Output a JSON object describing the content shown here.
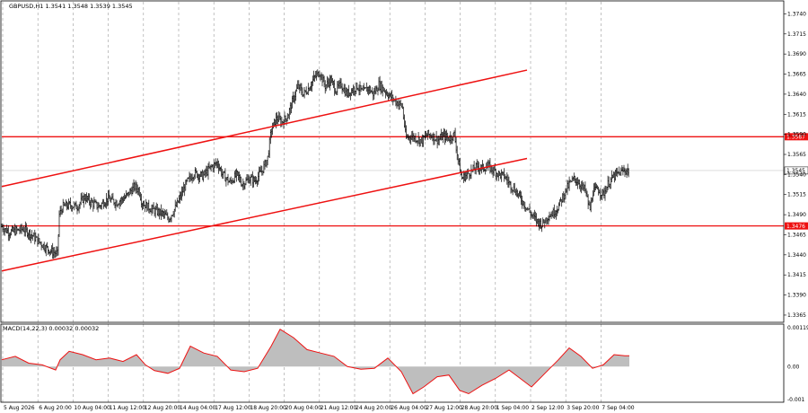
{
  "chart_title": "GBPUSD,H1  1.3541 1.3548 1.3539 1.3545",
  "macd_title": "MACD(14,22,3) 0.00032 0.00032",
  "colors": {
    "background": "#ffffff",
    "bars": "#000000",
    "grid": "#9a9a9a",
    "trend_line": "#ee1111",
    "macd_histogram": "#bebebe",
    "macd_signal": "#ee1111",
    "bid_tag_bg": "#ffffff",
    "level_tag_bg": "#ee1111"
  },
  "chart_data": [
    {
      "type": "candlestick",
      "symbol": "GBPUSD",
      "timeframe": "H1",
      "ohlc_last": {
        "open": 1.3541,
        "high": 1.3548,
        "low": 1.3539,
        "close": 1.3545
      },
      "ylim": [
        1.3356,
        1.3755
      ],
      "y_ticks": [
        "1.3740",
        "1.3715",
        "1.3690",
        "1.3665",
        "1.3640",
        "1.3615",
        "1.3590",
        "1.3565",
        "1.3540",
        "1.3515",
        "1.3490",
        "1.3465",
        "1.3440",
        "1.3415",
        "1.3390",
        "1.3365"
      ],
      "x_ticks": [
        "5 Aug 2026",
        "6 Aug 20:00",
        "10 Aug 04:00",
        "11 Aug 12:00",
        "12 Aug 20:00",
        "14 Aug 04:00",
        "17 Aug 12:00",
        "18 Aug 20:00",
        "20 Aug 04:00",
        "21 Aug 12:00",
        "24 Aug 20:00",
        "26 Aug 04:00",
        "27 Aug 12:00",
        "28 Aug 20:00",
        "1 Sep 04:00",
        "2 Sep 12:00",
        "3 Sep 20:00",
        "7 Sep 04:00"
      ],
      "close_path": [
        [
          0,
          1.3475
        ],
        [
          8,
          1.3468
        ],
        [
          16,
          1.347
        ],
        [
          24,
          1.3472
        ],
        [
          32,
          1.3466
        ],
        [
          40,
          1.3458
        ],
        [
          48,
          1.345
        ],
        [
          56,
          1.3444
        ],
        [
          62,
          1.3441
        ],
        [
          64,
          1.349
        ],
        [
          68,
          1.35
        ],
        [
          76,
          1.3502
        ],
        [
          84,
          1.35
        ],
        [
          92,
          1.3512
        ],
        [
          100,
          1.3505
        ],
        [
          108,
          1.35
        ],
        [
          118,
          1.351
        ],
        [
          128,
          1.3505
        ],
        [
          138,
          1.3512
        ],
        [
          148,
          1.3525
        ],
        [
          153,
          1.352
        ],
        [
          156,
          1.3505
        ],
        [
          162,
          1.35
        ],
        [
          170,
          1.3495
        ],
        [
          178,
          1.3492
        ],
        [
          186,
          1.3485
        ],
        [
          194,
          1.35
        ],
        [
          200,
          1.3515
        ],
        [
          206,
          1.353
        ],
        [
          214,
          1.3542
        ],
        [
          224,
          1.3538
        ],
        [
          232,
          1.3548
        ],
        [
          240,
          1.3555
        ],
        [
          246,
          1.354
        ],
        [
          254,
          1.353
        ],
        [
          262,
          1.354
        ],
        [
          268,
          1.3528
        ],
        [
          276,
          1.3535
        ],
        [
          282,
          1.3532
        ],
        [
          290,
          1.3545
        ],
        [
          296,
          1.356
        ],
        [
          300,
          1.3595
        ],
        [
          306,
          1.361
        ],
        [
          312,
          1.3605
        ],
        [
          318,
          1.3612
        ],
        [
          324,
          1.3632
        ],
        [
          330,
          1.365
        ],
        [
          336,
          1.364
        ],
        [
          342,
          1.3648
        ],
        [
          348,
          1.366
        ],
        [
          354,
          1.3668
        ],
        [
          360,
          1.365
        ],
        [
          366,
          1.3658
        ],
        [
          372,
          1.3645
        ],
        [
          378,
          1.3652
        ],
        [
          384,
          1.364
        ],
        [
          390,
          1.3645
        ],
        [
          396,
          1.365
        ],
        [
          402,
          1.3642
        ],
        [
          408,
          1.3648
        ],
        [
          414,
          1.364
        ],
        [
          420,
          1.3652
        ],
        [
          426,
          1.3645
        ],
        [
          432,
          1.3638
        ],
        [
          440,
          1.363
        ],
        [
          446,
          1.3625
        ],
        [
          450,
          1.3585
        ],
        [
          456,
          1.3588
        ],
        [
          462,
          1.3585
        ],
        [
          468,
          1.3582
        ],
        [
          474,
          1.359
        ],
        [
          480,
          1.3588
        ],
        [
          486,
          1.3583
        ],
        [
          492,
          1.3588
        ],
        [
          498,
          1.3585
        ],
        [
          504,
          1.359
        ],
        [
          508,
          1.356
        ],
        [
          512,
          1.3535
        ],
        [
          518,
          1.354
        ],
        [
          524,
          1.3545
        ],
        [
          530,
          1.355
        ],
        [
          536,
          1.3548
        ],
        [
          542,
          1.355
        ],
        [
          548,
          1.3545
        ],
        [
          554,
          1.354
        ],
        [
          560,
          1.3538
        ],
        [
          566,
          1.3528
        ],
        [
          572,
          1.352
        ],
        [
          578,
          1.351
        ],
        [
          584,
          1.35
        ],
        [
          590,
          1.349
        ],
        [
          596,
          1.3482
        ],
        [
          602,
          1.3478
        ],
        [
          608,
          1.3488
        ],
        [
          614,
          1.3492
        ],
        [
          620,
          1.35
        ],
        [
          626,
          1.3515
        ],
        [
          632,
          1.3528
        ],
        [
          638,
          1.3535
        ],
        [
          644,
          1.3528
        ],
        [
          650,
          1.352
        ],
        [
          655,
          1.3495
        ],
        [
          658,
          1.3518
        ],
        [
          664,
          1.3522
        ],
        [
          670,
          1.3515
        ],
        [
          676,
          1.353
        ],
        [
          682,
          1.3538
        ],
        [
          688,
          1.3542
        ],
        [
          694,
          1.3545
        ],
        [
          699,
          1.3545
        ]
      ],
      "horizontal_levels": [
        {
          "value": 1.3587,
          "label": "1.3587"
        },
        {
          "value": 1.3476,
          "label": "1.3476"
        }
      ],
      "current_price": {
        "value": 1.3545,
        "label": "1.3545"
      },
      "channel_lines": [
        {
          "from": [
            0,
            1.3525
          ],
          "to": [
            585,
            1.367
          ]
        },
        {
          "from": [
            0,
            1.342
          ],
          "to": [
            585,
            1.356
          ]
        }
      ],
      "grid": true
    },
    {
      "type": "area",
      "name": "MACD(14,22,3)",
      "ylim": [
        -0.00105,
        0.00125
      ],
      "y_ticks": [
        "0.00119",
        "0.00",
        "-0.001"
      ],
      "main_line": [
        [
          0,
          0.0002
        ],
        [
          15,
          0.0003
        ],
        [
          30,
          0.0001
        ],
        [
          45,
          5e-05
        ],
        [
          60,
          -0.0001
        ],
        [
          65,
          0.0002
        ],
        [
          75,
          0.00045
        ],
        [
          90,
          0.00035
        ],
        [
          105,
          0.0002
        ],
        [
          120,
          0.00025
        ],
        [
          135,
          0.00015
        ],
        [
          150,
          0.00035
        ],
        [
          160,
          5e-05
        ],
        [
          170,
          -0.00012
        ],
        [
          185,
          -0.0002
        ],
        [
          198,
          -5e-05
        ],
        [
          210,
          0.0006
        ],
        [
          225,
          0.0004
        ],
        [
          240,
          0.0003
        ],
        [
          255,
          -0.0001
        ],
        [
          270,
          -0.00015
        ],
        [
          285,
          -5e-05
        ],
        [
          300,
          0.0006
        ],
        [
          310,
          0.0011
        ],
        [
          325,
          0.00085
        ],
        [
          340,
          0.0005
        ],
        [
          355,
          0.0004
        ],
        [
          370,
          0.0003
        ],
        [
          385,
          0.0
        ],
        [
          400,
          -8e-05
        ],
        [
          415,
          -5e-05
        ],
        [
          430,
          0.00025
        ],
        [
          445,
          -0.00015
        ],
        [
          458,
          -0.0008
        ],
        [
          470,
          -0.0006
        ],
        [
          485,
          -0.0003
        ],
        [
          498,
          -0.00025
        ],
        [
          510,
          -0.0007
        ],
        [
          520,
          -0.0008
        ],
        [
          535,
          -0.00055
        ],
        [
          550,
          -0.00035
        ],
        [
          565,
          -0.0001
        ],
        [
          575,
          -0.0003
        ],
        [
          590,
          -0.0006
        ],
        [
          605,
          -0.0002
        ],
        [
          620,
          0.0002
        ],
        [
          632,
          0.00055
        ],
        [
          645,
          0.0003
        ],
        [
          658,
          -5e-05
        ],
        [
          670,
          5e-05
        ],
        [
          682,
          0.00035
        ],
        [
          694,
          0.00032
        ],
        [
          699,
          0.00032
        ]
      ]
    }
  ]
}
